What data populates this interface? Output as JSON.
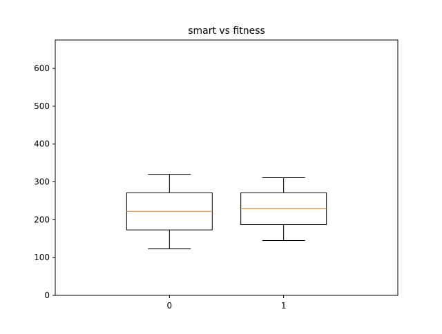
{
  "chart_data": {
    "type": "box",
    "title": "smart vs fitness",
    "xlabel": "",
    "ylabel": "",
    "categories": [
      "0",
      "1"
    ],
    "ylim": [
      0,
      675
    ],
    "yticks": [
      0,
      100,
      200,
      300,
      400,
      500,
      600
    ],
    "ytick_labels": [
      "0",
      "100",
      "200",
      "300",
      "400",
      "500",
      "600"
    ],
    "boxes": [
      {
        "category": "0",
        "whisker_low": 123,
        "q1": 173,
        "median": 222,
        "q3": 271,
        "whisker_high": 320
      },
      {
        "category": "1",
        "whisker_low": 145,
        "q1": 187,
        "median": 229,
        "q3": 271,
        "whisker_high": 311
      }
    ],
    "grid": false,
    "colors": {
      "box": "#000000",
      "median": "#ff7f0e"
    }
  }
}
